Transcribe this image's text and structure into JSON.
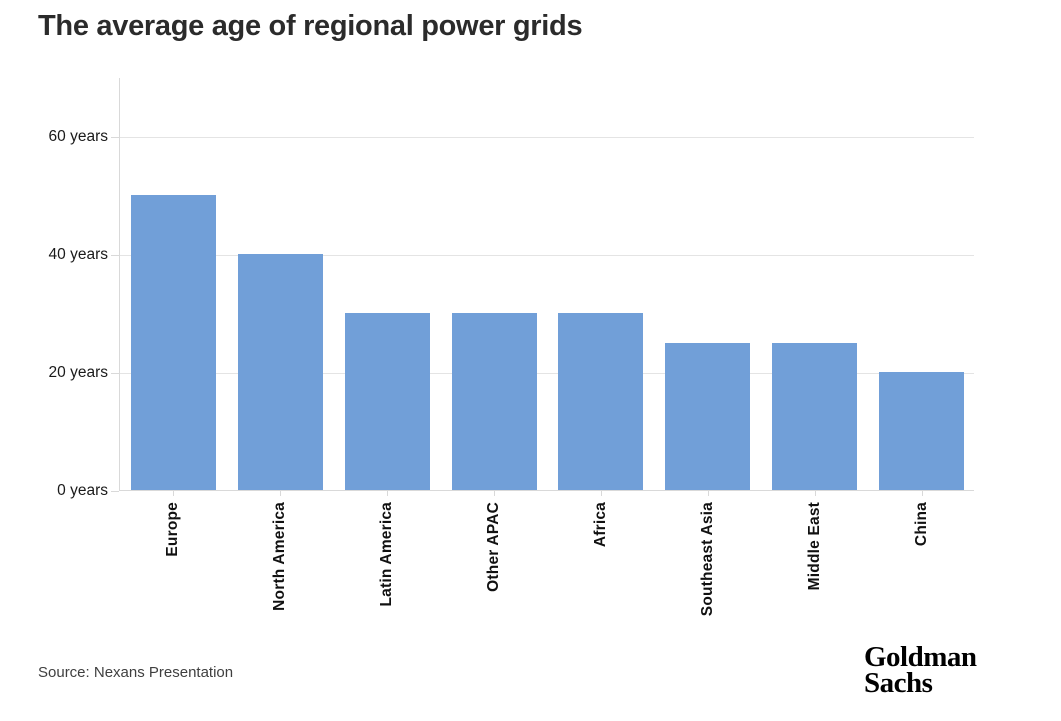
{
  "title": "The average age of regional power grids",
  "source": "Source: Nexans Presentation",
  "logo": {
    "line1": "Goldman",
    "line2": "Sachs"
  },
  "chart_data": {
    "type": "bar",
    "title": "The average age of regional power grids",
    "categories": [
      "Europe",
      "North America",
      "Latin America",
      "Other APAC",
      "Africa",
      "Southeast Asia",
      "Middle East",
      "China"
    ],
    "values": [
      50,
      40,
      30,
      30,
      30,
      25,
      25,
      20
    ],
    "xlabel": "",
    "ylabel": "",
    "ylim": [
      0,
      70
    ],
    "yticks": [
      0,
      20,
      40,
      60
    ],
    "ytick_labels": [
      "0 years",
      "20 years",
      "40 years",
      "60 years"
    ],
    "unit": "years",
    "grid": true,
    "legend": false,
    "bar_color": "#719fd8",
    "gridline_color": "#e4e4e4",
    "axis_color": "#d9d9d9",
    "source": "Source: Nexans Presentation"
  }
}
